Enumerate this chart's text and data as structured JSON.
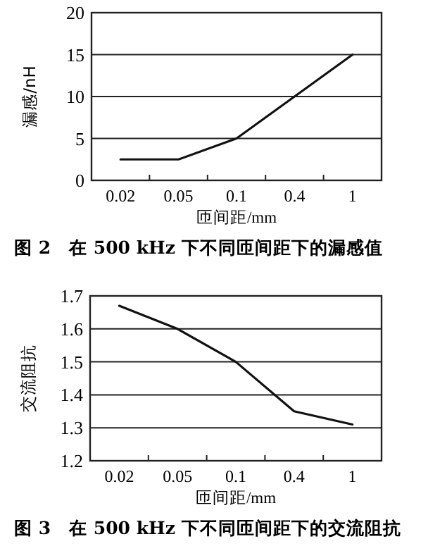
{
  "chart_data": [
    {
      "type": "line",
      "title": "图 2　在 500 kHz 下不同匝间距下的漏感值",
      "xlabel": "匝间距/mm",
      "ylabel": "漏感/nH",
      "categories": [
        "0.02",
        "0.05",
        "0.1",
        "0.4",
        "1"
      ],
      "series": [
        {
          "color": "#111111",
          "values": [
            2.5,
            2.5,
            5,
            10,
            15
          ]
        }
      ],
      "ylim": [
        0,
        20
      ],
      "yticks": [
        0,
        5,
        10,
        15,
        20
      ],
      "grid": "y",
      "marker": "none",
      "line_style": "solid"
    },
    {
      "type": "line",
      "title": "图 3　在 500 kHz 下不同匝间距下的交流阻抗",
      "xlabel": "匝间距/mm",
      "ylabel": "交流阻抗",
      "categories": [
        "0.02",
        "0.05",
        "0.1",
        "0.4",
        "1"
      ],
      "series": [
        {
          "color": "#111111",
          "values": [
            1.67,
            1.6,
            1.5,
            1.35,
            1.31
          ]
        }
      ],
      "ylim": [
        1.2,
        1.7
      ],
      "yticks": [
        1.2,
        1.3,
        1.4,
        1.5,
        1.6,
        1.7
      ],
      "grid": "y",
      "marker": "none",
      "line_style": "solid"
    }
  ]
}
